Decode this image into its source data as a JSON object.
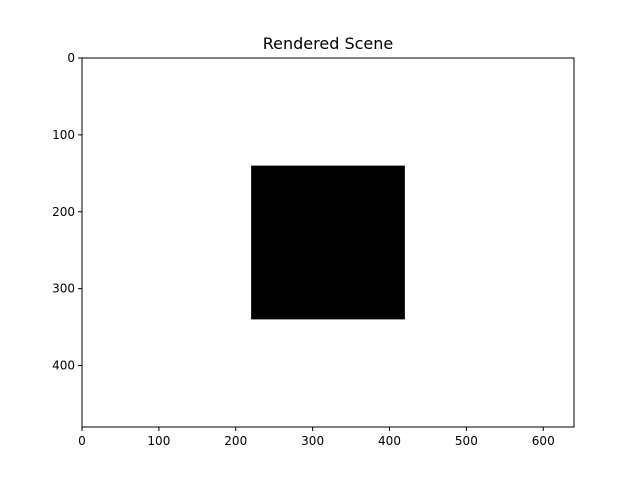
{
  "chart_data": {
    "type": "heatmap",
    "title": "Rendered Scene",
    "xlabel": "",
    "ylabel": "",
    "xlim": [
      0,
      640
    ],
    "ylim": [
      480,
      0
    ],
    "y_axis_inverted": true,
    "grid": false,
    "background_color": "#ffffff",
    "x_ticks": [
      0,
      100,
      200,
      300,
      400,
      500,
      600
    ],
    "y_ticks": [
      0,
      100,
      200,
      300,
      400
    ],
    "shapes": [
      {
        "kind": "rectangle",
        "x_min": 220,
        "x_max": 420,
        "y_min": 140,
        "y_max": 340,
        "color": "#000000"
      }
    ]
  }
}
